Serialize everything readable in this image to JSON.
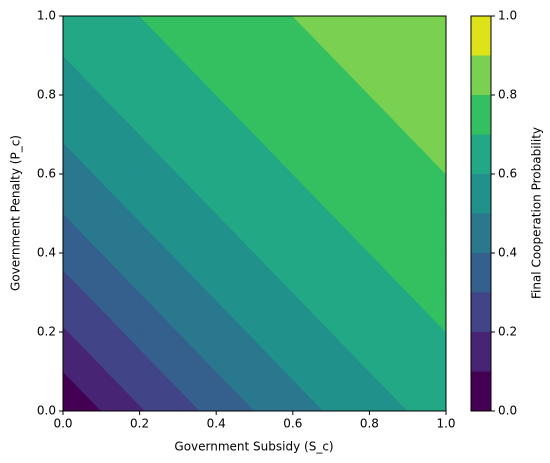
{
  "chart_data": {
    "type": "contour",
    "xlabel": "Government Subsidy (S_c)",
    "ylabel": "Government Penalty (P_c)",
    "colorbar_label": "Final Cooperation Probability",
    "x": [
      0,
      0.1,
      0.2,
      0.3,
      0.4,
      0.5,
      0.6,
      0.7,
      0.8,
      0.9,
      1.0
    ],
    "y": [
      0,
      0.1,
      0.2,
      0.3,
      0.4,
      0.5,
      0.6,
      0.7,
      0.8,
      0.9,
      1.0
    ],
    "z": [
      [
        0.03,
        0.1,
        0.19,
        0.26,
        0.33,
        0.4,
        0.46,
        0.51,
        0.56,
        0.6,
        0.63
      ],
      [
        0.1,
        0.19,
        0.26,
        0.33,
        0.4,
        0.46,
        0.51,
        0.56,
        0.6,
        0.63,
        0.67
      ],
      [
        0.19,
        0.26,
        0.33,
        0.4,
        0.46,
        0.51,
        0.56,
        0.6,
        0.63,
        0.67,
        0.7
      ],
      [
        0.26,
        0.33,
        0.4,
        0.46,
        0.51,
        0.56,
        0.6,
        0.63,
        0.67,
        0.7,
        0.725
      ],
      [
        0.33,
        0.4,
        0.46,
        0.51,
        0.56,
        0.6,
        0.63,
        0.67,
        0.7,
        0.725,
        0.75
      ],
      [
        0.4,
        0.46,
        0.51,
        0.56,
        0.6,
        0.63,
        0.67,
        0.7,
        0.725,
        0.75,
        0.775
      ],
      [
        0.46,
        0.51,
        0.56,
        0.6,
        0.63,
        0.67,
        0.7,
        0.725,
        0.75,
        0.775,
        0.8
      ],
      [
        0.51,
        0.56,
        0.6,
        0.63,
        0.67,
        0.7,
        0.725,
        0.75,
        0.775,
        0.8,
        0.82
      ],
      [
        0.56,
        0.6,
        0.63,
        0.67,
        0.7,
        0.725,
        0.75,
        0.775,
        0.8,
        0.82,
        0.84
      ],
      [
        0.6,
        0.63,
        0.67,
        0.7,
        0.725,
        0.75,
        0.775,
        0.8,
        0.82,
        0.84,
        0.86
      ],
      [
        0.63,
        0.67,
        0.7,
        0.725,
        0.75,
        0.775,
        0.8,
        0.82,
        0.84,
        0.86,
        0.88
      ]
    ],
    "levels": [
      0,
      0.1,
      0.2,
      0.3,
      0.4,
      0.5,
      0.6,
      0.7,
      0.8,
      0.9,
      1.0
    ],
    "colors": [
      "#440154",
      "#482475",
      "#414487",
      "#355f8d",
      "#2a788e",
      "#21918c",
      "#22a884",
      "#34c060",
      "#7ad151",
      "#dde318"
    ],
    "xlim": [
      0,
      1
    ],
    "ylim": [
      0,
      1
    ],
    "xticks": [
      {
        "value": 0,
        "label": "0.0"
      },
      {
        "value": 0.2,
        "label": "0.2"
      },
      {
        "value": 0.4,
        "label": "0.4"
      },
      {
        "value": 0.6,
        "label": "0.6"
      },
      {
        "value": 0.8,
        "label": "0.8"
      },
      {
        "value": 1,
        "label": "1.0"
      }
    ],
    "yticks": [
      {
        "value": 0,
        "label": "0.0"
      },
      {
        "value": 0.2,
        "label": "0.2"
      },
      {
        "value": 0.4,
        "label": "0.4"
      },
      {
        "value": 0.6,
        "label": "0.6"
      },
      {
        "value": 0.8,
        "label": "0.8"
      },
      {
        "value": 1,
        "label": "1.0"
      }
    ],
    "colorbar_lim": [
      0,
      1
    ],
    "colorbar_ticks": [
      {
        "value": 0,
        "label": "0.0"
      },
      {
        "value": 0.2,
        "label": "0.2"
      },
      {
        "value": 0.4,
        "label": "0.4"
      },
      {
        "value": 0.6,
        "label": "0.6"
      },
      {
        "value": 0.8,
        "label": "0.8"
      },
      {
        "value": 1,
        "label": "1.0"
      }
    ]
  }
}
